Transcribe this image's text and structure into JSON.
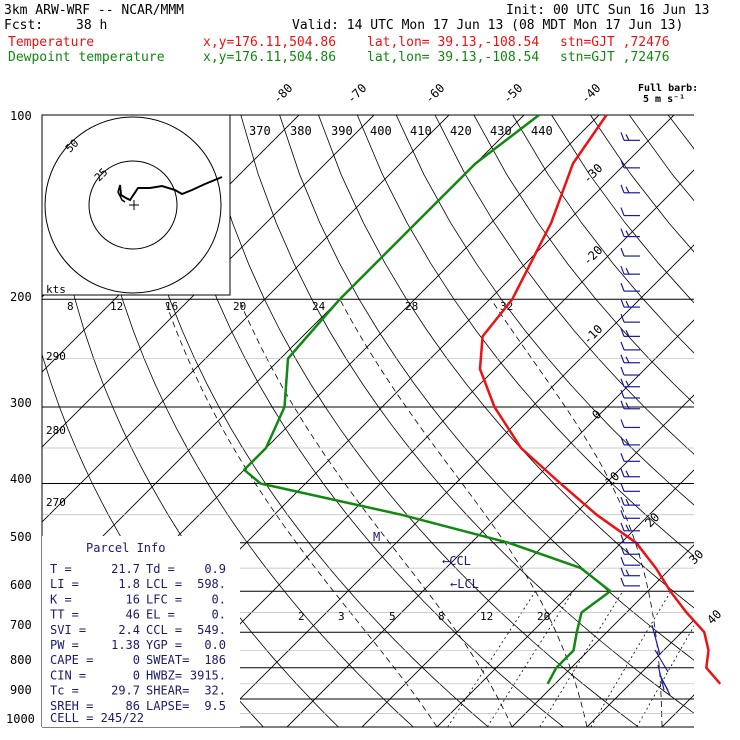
{
  "header": {
    "model": "3km ARW-WRF -- NCAR/MMM",
    "init": "Init: 00 UTC Sun 16 Jun 13",
    "fcst_label": "Fcst:",
    "fcst_value": "38 h",
    "valid": "Valid: 14 UTC Mon 17 Jun 13 (08 MDT Mon 17 Jun 13)",
    "temp_label": "Temperature",
    "temp_xy": "x,y=176.11,504.86",
    "temp_latlon": "lat,lon= 39.13,-108.54",
    "temp_stn": "stn=GJT ,72476",
    "dew_label": "Dewpoint temperature",
    "dew_xy": "x,y=176.11,504.86",
    "dew_latlon": "lat,lon= 39.13,-108.54",
    "dew_stn": "stn=GJT ,72476",
    "barb_note1": "Full barb:",
    "barb_note2": "5 m s⁻¹"
  },
  "colors": {
    "temperature": "#ee1111",
    "dewpoint": "#118811",
    "parcel": "#1a1a6e",
    "barbs": "#1a1aa0"
  },
  "chart_data": {
    "type": "line",
    "title": "",
    "pressure_levels": [
      "100",
      "200",
      "300",
      "400",
      "500",
      "600",
      "700",
      "800",
      "900",
      "1000"
    ],
    "theta_labels": [
      "370",
      "380",
      "390",
      "400",
      "410",
      "420",
      "430",
      "440"
    ],
    "temp_axis_labels": [
      "-80",
      "-70",
      "-60",
      "-50",
      "-40",
      "-30",
      "-20",
      "-10",
      "0",
      "10",
      "20",
      "30",
      "40"
    ],
    "mixing_ratio_labels_upper": [
      "8",
      "12",
      "16",
      "20",
      "24",
      "28",
      "32"
    ],
    "mixing_ratio_labels_lower": [
      "2",
      "3",
      "5",
      "8",
      "12",
      "20"
    ],
    "theta_side_labels": [
      "290",
      "280",
      "270"
    ],
    "series": [
      {
        "name": "Temperature",
        "pressure": [
          100,
          120,
          150,
          200,
          230,
          260,
          300,
          350,
          400,
          450,
          500,
          550,
          600,
          650,
          700,
          750,
          800,
          850
        ],
        "values": [
          -69,
          -67,
          -62,
          -57,
          -56,
          -52,
          -45,
          -36,
          -26,
          -17,
          -8,
          -2,
          3,
          8,
          13,
          16,
          18,
          22
        ]
      },
      {
        "name": "Dewpoint temperature",
        "pressure": [
          100,
          120,
          150,
          200,
          250,
          300,
          350,
          380,
          400,
          450,
          500,
          550,
          600,
          650,
          700,
          750,
          800,
          850
        ],
        "values": [
          -78,
          -80,
          -80,
          -80,
          -79,
          -73,
          -70,
          -70,
          -66,
          -43,
          -25,
          -12,
          -5,
          -6,
          -4,
          -2,
          -2,
          -1
        ]
      }
    ],
    "hodograph": {
      "rings": [
        "25",
        "50"
      ],
      "unit": "kts"
    },
    "parcel_info": {
      "title": "Parcel Info",
      "rows": [
        [
          "T  =",
          "21.7",
          "Td =",
          "0.9"
        ],
        [
          "LI =",
          "1.8",
          "LCL =",
          "598."
        ],
        [
          "K  =",
          "16",
          "LFC =",
          "0."
        ],
        [
          "TT =",
          "46",
          "EL  =",
          "0."
        ],
        [
          "SVI =",
          "2.4",
          "CCL =",
          "549."
        ],
        [
          "PW =",
          "1.38",
          "YGP =",
          "0.0"
        ],
        [
          "CAPE =",
          "0",
          "SWEAT=",
          "186"
        ],
        [
          "CIN =",
          "0",
          "HWBZ=",
          "3915."
        ],
        [
          "Tc =",
          "29.7",
          "SHEAR=",
          "32."
        ],
        [
          "SREH =",
          "86",
          "LAPSE=",
          "9.5"
        ]
      ],
      "cell": "CELL = 245/22",
      "ccl_marker": "←CCL",
      "lcl_marker": "←LCL",
      "m_marker": "M"
    }
  }
}
